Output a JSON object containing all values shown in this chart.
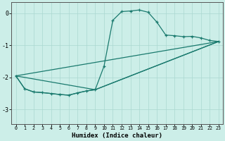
{
  "xlabel": "Humidex (Indice chaleur)",
  "line_color": "#1a7a6e",
  "bg_color": "#cceee8",
  "grid_color": "#aad8d0",
  "xlim": [
    -0.5,
    23.5
  ],
  "ylim": [
    -3.45,
    0.35
  ],
  "yticks": [
    0,
    -1,
    -2,
    -3
  ],
  "xtick_vals": [
    0,
    1,
    2,
    3,
    4,
    5,
    6,
    7,
    8,
    9,
    10,
    11,
    12,
    13,
    14,
    15,
    16,
    17,
    18,
    19,
    20,
    21,
    22,
    23
  ],
  "xtick_labels": [
    "0",
    "1",
    "2",
    "3",
    "4",
    "5",
    "6",
    "7",
    "8",
    "9",
    "10",
    "11",
    "12",
    "13",
    "14",
    "15",
    "16",
    "17",
    "18",
    "19",
    "20",
    "21",
    "22",
    "23"
  ],
  "main_x": [
    0,
    1,
    2,
    3,
    4,
    5,
    6,
    7,
    8,
    9,
    10,
    11,
    12,
    13,
    14,
    15,
    16,
    17,
    18,
    19,
    20,
    21,
    22,
    23
  ],
  "main_y": [
    -1.95,
    -2.35,
    -2.45,
    -2.47,
    -2.5,
    -2.53,
    -2.55,
    -2.48,
    -2.42,
    -2.38,
    -1.65,
    -0.22,
    0.05,
    0.07,
    0.1,
    0.03,
    -0.28,
    -0.68,
    -0.7,
    -0.73,
    -0.72,
    -0.77,
    -0.85,
    -0.88
  ],
  "extra_lines": [
    {
      "x": [
        0,
        23
      ],
      "y": [
        -1.95,
        -0.88
      ]
    },
    {
      "x": [
        0,
        9,
        23
      ],
      "y": [
        -1.95,
        -2.38,
        -0.88
      ]
    },
    {
      "x": [
        0,
        1,
        2,
        3,
        4,
        5,
        6,
        7,
        8,
        9,
        23
      ],
      "y": [
        -1.95,
        -2.35,
        -2.45,
        -2.47,
        -2.5,
        -2.53,
        -2.55,
        -2.48,
        -2.42,
        -2.38,
        -0.88
      ]
    }
  ]
}
